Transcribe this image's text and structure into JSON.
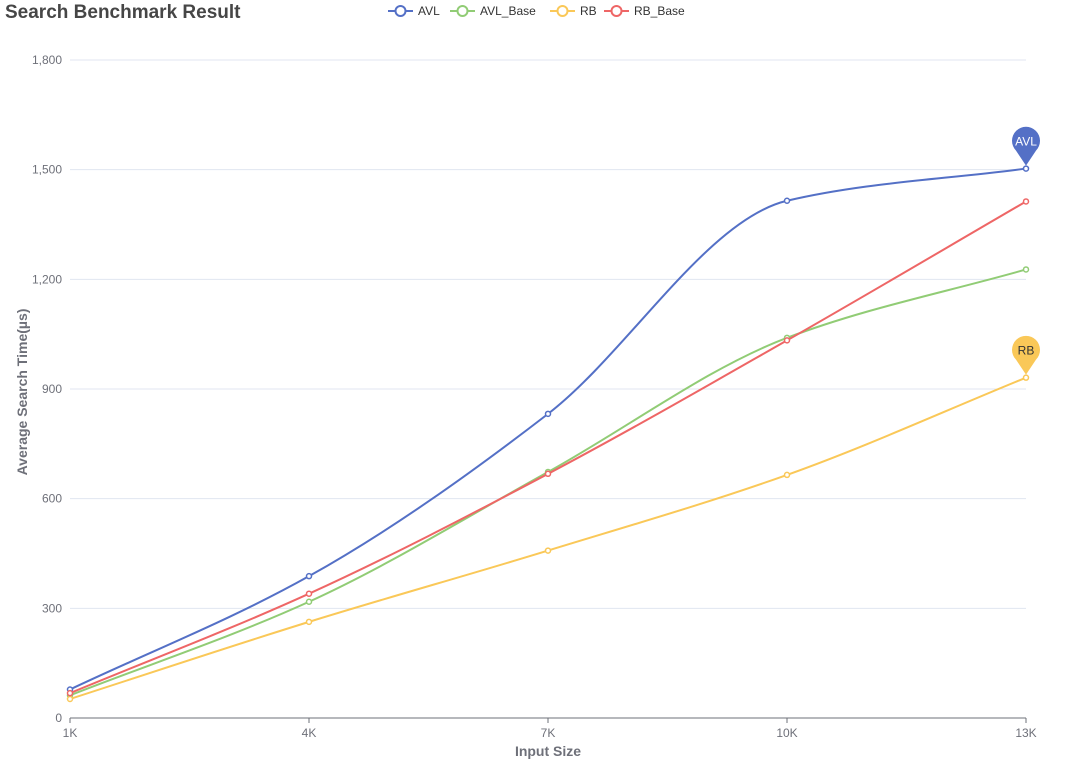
{
  "chart_data": {
    "type": "line",
    "title": "Search Benchmark Result",
    "xlabel": "Input Size",
    "ylabel": "Average Search Time(µs)",
    "categories": [
      "1K",
      "4K",
      "7K",
      "10K",
      "13K"
    ],
    "ylim": [
      0,
      1800
    ],
    "yticks": [
      0,
      300,
      600,
      900,
      1200,
      1500,
      1800
    ],
    "ytick_labels": [
      "0",
      "300",
      "600",
      "900",
      "1,200",
      "1,500",
      "1,800"
    ],
    "grid": true,
    "legend_position": "top",
    "smooth": true,
    "series": [
      {
        "name": "AVL",
        "color": "#5470c6",
        "values": [
          78,
          388,
          832,
          1415,
          1503
        ],
        "pin_label": "AVL"
      },
      {
        "name": "AVL_Base",
        "color": "#91cc75",
        "values": [
          62,
          318,
          673,
          1040,
          1227
        ]
      },
      {
        "name": "RB",
        "color": "#fac858",
        "values": [
          52,
          263,
          458,
          665,
          931
        ],
        "pin_label": "RB"
      },
      {
        "name": "RB_Base",
        "color": "#ee6666",
        "values": [
          68,
          340,
          668,
          1033,
          1413
        ]
      }
    ]
  }
}
